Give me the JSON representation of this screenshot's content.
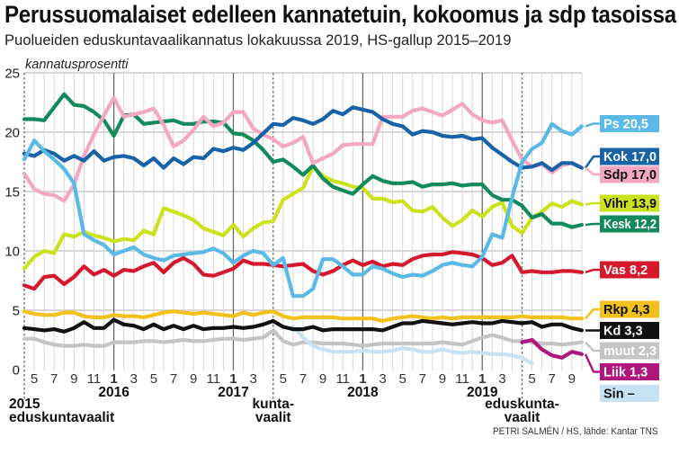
{
  "chart_data": {
    "type": "line",
    "title": "Perussuomalaiset edelleen kannatetuin, kokoomus ja sdp tasoissa",
    "subtitle": "Puolueiden eduskuntavaalikannatus lokakuussa 2019, HS-gallup 2015–2019",
    "xlabel": "",
    "ylabel": "kannatusprosentti",
    "ylim": [
      0,
      25
    ],
    "y_ticks": [
      0,
      5,
      10,
      15,
      20,
      25
    ],
    "grid": true,
    "legend": "right (end-of-line value labels)",
    "source": "PETRI SALMÉN / HS, lähde: Kantar TNS",
    "x": [
      "2015 eduskuntavaalit",
      "2015-05",
      "2015-06",
      "2015-07",
      "2015-08",
      "2015-09",
      "2015-10",
      "2015-11",
      "2015-12",
      "2016-01",
      "2016-02",
      "2016-03",
      "2016-04",
      "2016-05",
      "2016-06",
      "2016-07",
      "2016-08",
      "2016-09",
      "2016-10",
      "2016-11",
      "2016-12",
      "2017-01",
      "2017-02",
      "2017-03",
      "2017-04",
      "2017 kuntavaalit",
      "2017-05",
      "2017-06",
      "2017-07",
      "2017-08",
      "2017-09",
      "2017-10",
      "2017-11",
      "2017-12",
      "2018-01",
      "2018-02",
      "2018-03",
      "2018-04",
      "2018-05",
      "2018-06",
      "2018-07",
      "2018-08",
      "2018-09",
      "2018-10",
      "2018-11",
      "2018-12",
      "2019-01",
      "2019-02",
      "2019-03",
      "2019-04",
      "2019 eduskuntavaalit",
      "2019-05",
      "2019-06",
      "2019-07",
      "2019-08",
      "2019-09",
      "2019-10"
    ],
    "x_tick_labels": [
      "",
      "5",
      "",
      "7",
      "",
      "9",
      "",
      "11",
      "",
      "1",
      "",
      "3",
      "",
      "5",
      "",
      "7",
      "",
      "9",
      "",
      "11",
      "",
      "1",
      "",
      "3",
      "",
      "",
      "5",
      "",
      "7",
      "",
      "9",
      "",
      "11",
      "",
      "1",
      "",
      "3",
      "",
      "5",
      "",
      "7",
      "",
      "9",
      "",
      "11",
      "",
      "1",
      "",
      "3",
      "",
      "",
      "5",
      "",
      "7",
      "",
      "9",
      ""
    ],
    "year_labels": [
      {
        "slot": 9,
        "label": "2016"
      },
      {
        "slot": 21,
        "label": "2017"
      },
      {
        "slot": 34,
        "label": "2018"
      },
      {
        "slot": 46,
        "label": "2019"
      }
    ],
    "events": [
      {
        "slot": 0,
        "label_lines": [
          "2015",
          "eduskuntavaalit"
        ]
      },
      {
        "slot": 25,
        "label_lines": [
          "kunta-",
          "vaalit"
        ]
      },
      {
        "slot": 50,
        "label_lines": [
          "eduskunta-",
          "vaalit"
        ]
      }
    ],
    "series": [
      {
        "name": "Ps",
        "label": "Ps 20,5",
        "color": "#5ab9e6",
        "text_color": "#ffffff",
        "start_slot": 0,
        "values": [
          17.7,
          19.3,
          18.4,
          17.7,
          16.9,
          15.7,
          11.4,
          10.9,
          10.5,
          9.7,
          10.0,
          10.3,
          9.7,
          9.4,
          9.2,
          9.6,
          9.7,
          9.8,
          9.9,
          10.2,
          9.8,
          9.0,
          9.6,
          10.0,
          9.8,
          8.8,
          9.4,
          6.2,
          6.2,
          6.8,
          9.3,
          9.3,
          8.7,
          8.0,
          8.0,
          8.7,
          8.5,
          8.1,
          7.8,
          8.0,
          7.9,
          8.3,
          8.8,
          9.0,
          8.8,
          8.7,
          9.5,
          11.4,
          11.1,
          14.5,
          17.5,
          18.6,
          19.1,
          20.7,
          20.1,
          19.8,
          20.5
        ]
      },
      {
        "name": "Kok",
        "label": "Kok 17,0",
        "color": "#1863a8",
        "text_color": "#ffffff",
        "start_slot": 0,
        "values": [
          18.2,
          18.0,
          18.5,
          18.2,
          17.6,
          18.0,
          17.6,
          18.4,
          17.6,
          17.9,
          18.0,
          17.8,
          17.2,
          17.8,
          17.0,
          17.8,
          17.3,
          17.9,
          17.8,
          18.6,
          18.4,
          18.7,
          18.5,
          19.1,
          19.9,
          20.7,
          20.6,
          21.2,
          21.0,
          20.7,
          21.1,
          21.8,
          21.5,
          22.1,
          21.9,
          21.7,
          21.1,
          20.7,
          20.5,
          19.8,
          20.1,
          20.0,
          19.7,
          19.6,
          19.7,
          19.4,
          19.5,
          18.7,
          18.1,
          17.5,
          17.0,
          17.1,
          17.4,
          16.8,
          17.4,
          17.4,
          17.0
        ]
      },
      {
        "name": "Sdp",
        "label": "Sdp 17,0",
        "color": "#f3a7c3",
        "text_color": "#111111",
        "start_slot": 0,
        "values": [
          16.5,
          15.2,
          14.8,
          14.7,
          14.2,
          15.6,
          18.0,
          19.8,
          21.4,
          22.9,
          21.3,
          21.5,
          21.7,
          22.0,
          20.6,
          18.8,
          19.3,
          20.2,
          21.3,
          20.5,
          20.8,
          21.7,
          21.7,
          20.3,
          19.8,
          19.4,
          18.8,
          19.1,
          19.6,
          17.4,
          17.8,
          18.2,
          18.9,
          19.0,
          19.0,
          19.0,
          21.3,
          21.3,
          21.3,
          21.8,
          22.0,
          21.7,
          21.4,
          21.9,
          22.4,
          21.5,
          21.0,
          20.8,
          21.0,
          19.3,
          17.7,
          17.1,
          17.3,
          16.6,
          17.2,
          17.4,
          17.0
        ]
      },
      {
        "name": "Vihr",
        "label": "Vihr 13,9",
        "color": "#cde21f",
        "text_color": "#111111",
        "start_slot": 0,
        "values": [
          8.5,
          9.5,
          10.0,
          9.8,
          11.4,
          11.2,
          11.6,
          11.3,
          11.1,
          10.8,
          11.0,
          10.9,
          11.7,
          11.4,
          13.6,
          13.3,
          13.0,
          12.6,
          11.9,
          11.6,
          11.3,
          12.2,
          11.2,
          11.9,
          12.4,
          12.5,
          14.3,
          14.8,
          15.3,
          17.1,
          16.3,
          15.9,
          15.7,
          15.4,
          15.3,
          14.4,
          14.4,
          14.1,
          14.2,
          13.4,
          13.3,
          13.7,
          12.8,
          12.1,
          12.6,
          13.4,
          12.9,
          13.7,
          14.1,
          12.1,
          11.5,
          12.8,
          13.3,
          14.0,
          13.7,
          14.2,
          13.9
        ]
      },
      {
        "name": "Kesk",
        "label": "Kesk 12,2",
        "color": "#138a5b",
        "text_color": "#ffffff",
        "start_slot": 0,
        "values": [
          21.1,
          21.1,
          21.0,
          22.1,
          23.2,
          22.3,
          22.2,
          21.7,
          21.0,
          19.7,
          21.4,
          21.5,
          20.7,
          20.8,
          20.9,
          21.0,
          20.7,
          20.7,
          20.9,
          20.9,
          20.8,
          19.9,
          19.8,
          19.3,
          18.5,
          17.5,
          17.7,
          17.1,
          16.4,
          17.2,
          16.1,
          15.4,
          15.1,
          14.8,
          15.6,
          16.3,
          15.9,
          15.7,
          15.7,
          15.8,
          15.4,
          15.6,
          15.6,
          15.7,
          15.5,
          15.6,
          15.6,
          14.7,
          14.3,
          14.3,
          13.8,
          12.8,
          13.1,
          12.3,
          12.3,
          12.0,
          12.2
        ]
      },
      {
        "name": "Vas",
        "label": "Vas 8,2",
        "color": "#d5182c",
        "text_color": "#ffffff",
        "start_slot": 0,
        "values": [
          7.1,
          6.8,
          7.8,
          7.9,
          7.2,
          7.8,
          8.7,
          8.0,
          8.4,
          7.9,
          8.4,
          8.3,
          8.7,
          9.0,
          8.2,
          9.0,
          9.4,
          8.9,
          8.0,
          7.9,
          8.2,
          8.5,
          9.2,
          8.9,
          8.9,
          8.8,
          8.7,
          8.8,
          8.9,
          8.3,
          8.0,
          8.3,
          8.8,
          9.2,
          8.8,
          9.1,
          8.7,
          8.9,
          8.8,
          9.3,
          9.6,
          9.7,
          9.7,
          9.9,
          9.8,
          9.7,
          9.4,
          8.8,
          9.0,
          9.6,
          8.2,
          8.3,
          8.2,
          8.2,
          8.3,
          8.3,
          8.2
        ]
      },
      {
        "name": "Rkp",
        "label": "Rkp 4,3",
        "color": "#f2c11c",
        "text_color": "#111111",
        "start_slot": 0,
        "values": [
          4.9,
          4.7,
          4.6,
          4.6,
          4.8,
          4.8,
          4.5,
          4.4,
          4.4,
          4.6,
          4.5,
          4.5,
          4.4,
          4.6,
          4.8,
          4.9,
          4.8,
          4.7,
          4.8,
          4.7,
          4.6,
          4.5,
          4.8,
          4.6,
          4.8,
          4.9,
          4.5,
          4.3,
          4.4,
          4.4,
          4.4,
          4.4,
          4.3,
          4.3,
          4.3,
          4.3,
          4.1,
          4.3,
          4.4,
          4.5,
          4.4,
          4.3,
          4.4,
          4.3,
          4.4,
          4.4,
          4.4,
          4.4,
          4.4,
          4.4,
          4.5,
          4.4,
          4.4,
          4.4,
          4.4,
          4.3,
          4.3
        ]
      },
      {
        "name": "Kd",
        "label": "Kd 3,3",
        "color": "#111111",
        "text_color": "#ffffff",
        "start_slot": 0,
        "values": [
          3.5,
          3.4,
          3.3,
          3.4,
          3.2,
          3.5,
          4.0,
          3.5,
          3.5,
          4.2,
          3.8,
          3.7,
          3.4,
          3.8,
          3.4,
          3.7,
          3.4,
          3.7,
          3.4,
          3.5,
          3.5,
          3.6,
          3.5,
          3.6,
          3.8,
          4.1,
          3.6,
          3.4,
          3.4,
          3.6,
          3.3,
          3.4,
          3.4,
          3.4,
          3.4,
          3.4,
          3.3,
          3.6,
          3.9,
          3.9,
          4.1,
          4.0,
          3.9,
          3.8,
          3.9,
          4.0,
          3.9,
          3.9,
          4.1,
          4.0,
          3.9,
          4.0,
          3.6,
          3.8,
          3.8,
          3.5,
          3.3
        ]
      },
      {
        "name": "muut",
        "label": "muut 2,3",
        "color": "#c4c4c4",
        "text_color": "#ffffff",
        "start_slot": 0,
        "values": [
          2.6,
          2.6,
          2.3,
          2.1,
          2.0,
          2.0,
          2.1,
          2.0,
          2.0,
          2.3,
          2.3,
          2.3,
          2.4,
          2.4,
          2.3,
          2.4,
          2.5,
          2.4,
          2.4,
          2.5,
          2.6,
          2.6,
          2.5,
          2.6,
          2.7,
          3.3,
          2.4,
          2.1,
          2.3,
          2.3,
          2.2,
          2.2,
          2.2,
          2.1,
          2.0,
          2.1,
          2.2,
          2.2,
          2.2,
          2.2,
          2.2,
          2.2,
          2.3,
          2.2,
          2.1,
          2.4,
          2.7,
          2.9,
          2.7,
          2.4,
          2.4,
          2.3,
          2.2,
          2.2,
          2.1,
          2.2,
          2.3
        ]
      },
      {
        "name": "Liik",
        "label": "Liik 1,3",
        "color": "#b0177d",
        "text_color": "#ffffff",
        "start_slot": 50,
        "values": [
          2.3,
          2.5,
          1.7,
          1.2,
          1.0,
          1.5,
          1.3
        ]
      },
      {
        "name": "Sin",
        "label": "Sin –",
        "color": "#c6e2f4",
        "text_color": "#111111",
        "start_slot": 27,
        "values": [
          3.6,
          2.7,
          2.0,
          1.7,
          1.5,
          1.5,
          1.5,
          1.6,
          1.5,
          1.5,
          1.6,
          1.8,
          1.7,
          1.5,
          1.5,
          1.7,
          1.5,
          1.4,
          1.5,
          1.4,
          1.3,
          1.3,
          1.2,
          1.0,
          0.5
        ]
      }
    ]
  }
}
